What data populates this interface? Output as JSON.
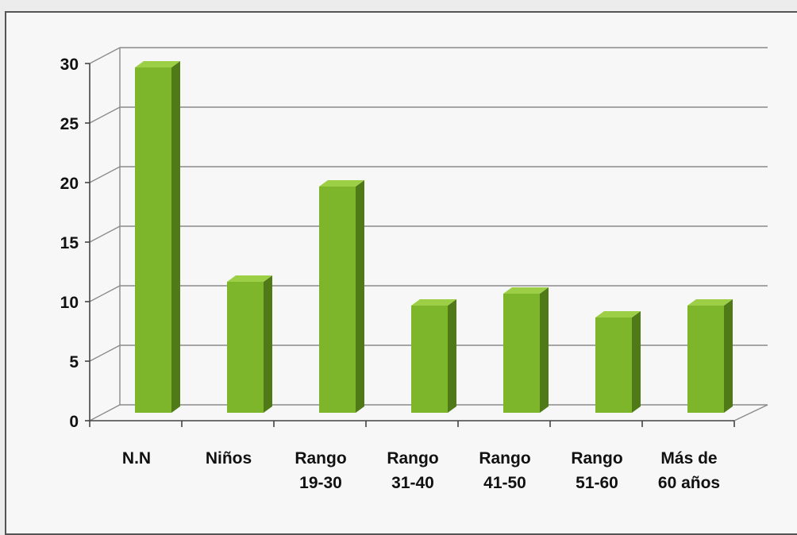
{
  "chart_data": {
    "type": "bar",
    "style": "3d-column",
    "categories": [
      [
        "N.N"
      ],
      [
        "Niños"
      ],
      [
        "Rango",
        "19-30"
      ],
      [
        "Rango",
        "31-40"
      ],
      [
        "Rango",
        "41-50"
      ],
      [
        "Rango",
        "51-60"
      ],
      [
        "Más de",
        "60 años"
      ]
    ],
    "values": [
      29,
      11,
      19,
      9,
      10,
      8,
      9
    ],
    "ylim": [
      0,
      30
    ],
    "yticks": [
      "0",
      "5",
      "10",
      "15",
      "20",
      "25",
      "30"
    ],
    "grid": true,
    "legend": "none",
    "colors": {
      "bar_front": "#7db62a",
      "bar_side": "#4f7a17",
      "bar_top": "#9ccf45",
      "grid": "#8a8a8a",
      "background": "#f7f7f7"
    }
  }
}
